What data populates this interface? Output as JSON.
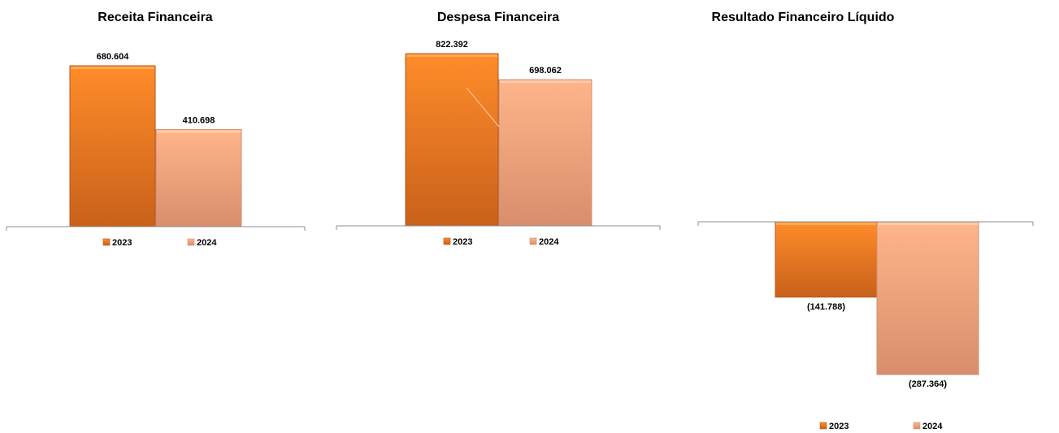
{
  "colors": {
    "series_2023_top": "#ff8c2a",
    "series_2023_bottom": "#c8611a",
    "series_2024_top": "#ffb58a",
    "series_2024_bottom": "#d88e6c",
    "axis": "#8c8c8c"
  },
  "chart_data": [
    {
      "type": "bar",
      "title": "Receita Financeira",
      "categories": [
        "2023",
        "2024"
      ],
      "values": [
        680604,
        410698
      ],
      "labels": [
        "680.604",
        "410.698"
      ],
      "legend": [
        "2023",
        "2024"
      ],
      "legend_position": "bottom",
      "grid": false
    },
    {
      "type": "bar",
      "title": "Despesa Financeira",
      "categories": [
        "2023",
        "2024"
      ],
      "values": [
        822392,
        698062
      ],
      "labels": [
        "822.392",
        "698.062"
      ],
      "legend": [
        "2023",
        "2024"
      ],
      "legend_position": "bottom",
      "grid": false
    },
    {
      "type": "bar",
      "title": "Resultado Financeiro Líquido",
      "categories": [
        "2023",
        "2024"
      ],
      "values": [
        -141788,
        -287364
      ],
      "labels": [
        "(141.788)",
        "(287.364)"
      ],
      "legend": [
        "2023",
        "2024"
      ],
      "legend_position": "bottom",
      "grid": false
    }
  ]
}
